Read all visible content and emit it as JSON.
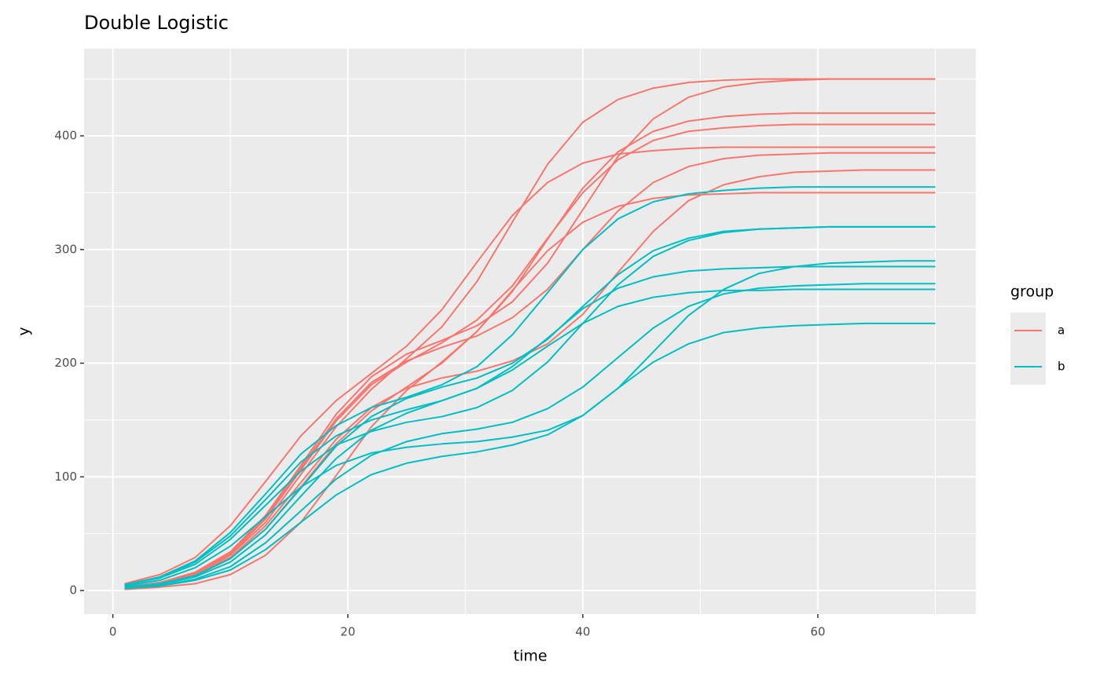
{
  "chart_data": {
    "type": "line",
    "title": "Double Logistic",
    "x_label": "time",
    "y_label": "y",
    "legend_title": "group",
    "grid": true,
    "xlim": [
      -2.45,
      73.45
    ],
    "ylim": [
      -20.7,
      476.7
    ],
    "xticks": [
      0,
      20,
      40,
      60
    ],
    "yticks": [
      0,
      100,
      200,
      300,
      400
    ],
    "x": [
      1,
      4,
      7,
      10,
      13,
      16,
      19,
      22,
      25,
      28,
      31,
      34,
      37,
      40,
      43,
      46,
      49,
      52,
      55,
      58,
      61,
      64,
      67,
      70
    ],
    "series": [
      {
        "name": "a",
        "color": "#F8766D",
        "lines": [
          [
            3,
            6,
            14,
            31,
            60,
            102,
            144,
            177,
            204,
            232,
            272,
            324,
            375,
            412,
            432,
            442,
            447,
            449,
            450,
            450,
            450,
            450,
            450,
            450
          ],
          [
            3,
            7,
            15,
            32,
            63,
            106,
            149,
            181,
            201,
            218,
            238,
            268,
            310,
            350,
            379,
            396,
            404,
            407,
            409,
            410,
            410,
            410,
            410,
            410
          ],
          [
            6,
            14,
            29,
            57,
            96,
            136,
            167,
            191,
            215,
            247,
            289,
            330,
            359,
            376,
            384,
            387,
            389,
            390,
            390,
            390,
            390,
            390,
            390,
            390
          ],
          [
            3,
            7,
            15,
            33,
            64,
            108,
            151,
            183,
            202,
            214,
            224,
            240,
            265,
            300,
            334,
            359,
            373,
            380,
            383,
            384,
            385,
            385,
            385,
            385
          ],
          [
            3,
            6,
            13,
            28,
            54,
            91,
            129,
            158,
            179,
            200,
            228,
            264,
            299,
            324,
            338,
            345,
            348,
            349,
            350,
            350,
            350,
            350,
            350,
            350
          ],
          [
            1,
            3,
            6,
            14,
            31,
            60,
            101,
            144,
            176,
            201,
            228,
            263,
            309,
            354,
            386,
            404,
            413,
            417,
            419,
            420,
            420,
            420,
            420,
            420
          ],
          [
            3,
            6,
            14,
            29,
            57,
            95,
            133,
            161,
            178,
            187,
            193,
            202,
            217,
            243,
            280,
            316,
            343,
            357,
            364,
            368,
            369,
            370,
            370,
            370
          ],
          [
            3,
            7,
            16,
            34,
            66,
            110,
            155,
            188,
            208,
            220,
            233,
            254,
            288,
            335,
            382,
            415,
            434,
            443,
            447,
            449,
            450,
            450,
            450,
            450
          ]
        ]
      },
      {
        "name": "b",
        "color": "#00BFC4",
        "lines": [
          [
            5,
            11,
            23,
            45,
            75,
            105,
            128,
            140,
            148,
            153,
            161,
            176,
            201,
            235,
            269,
            294,
            308,
            315,
            318,
            319,
            320,
            320,
            320,
            320
          ],
          [
            5,
            12,
            26,
            51,
            85,
            120,
            145,
            161,
            170,
            181,
            197,
            225,
            262,
            300,
            327,
            342,
            349,
            352,
            354,
            355,
            355,
            355,
            355,
            355
          ],
          [
            2,
            4,
            9,
            18,
            36,
            60,
            84,
            102,
            112,
            118,
            122,
            128,
            137,
            154,
            178,
            201,
            217,
            227,
            231,
            233,
            234,
            235,
            235,
            235
          ],
          [
            5,
            11,
            25,
            48,
            80,
            113,
            136,
            150,
            159,
            167,
            178,
            197,
            222,
            248,
            266,
            276,
            281,
            283,
            284,
            285,
            285,
            285,
            285,
            285
          ],
          [
            2,
            4,
            10,
            21,
            42,
            70,
            98,
            119,
            131,
            138,
            142,
            148,
            160,
            179,
            205,
            231,
            250,
            261,
            266,
            268,
            269,
            270,
            270,
            270
          ],
          [
            3,
            6,
            13,
            28,
            54,
            90,
            127,
            153,
            169,
            179,
            187,
            200,
            221,
            250,
            278,
            299,
            310,
            316,
            318,
            319,
            320,
            320,
            320,
            320
          ],
          [
            4,
            9,
            20,
            39,
            65,
            91,
            110,
            121,
            126,
            129,
            131,
            135,
            141,
            154,
            178,
            210,
            242,
            265,
            279,
            285,
            288,
            289,
            290,
            290
          ],
          [
            2,
            5,
            12,
            25,
            49,
            83,
            116,
            141,
            156,
            167,
            178,
            194,
            215,
            235,
            250,
            258,
            262,
            264,
            264,
            265,
            265,
            265,
            265,
            265
          ]
        ]
      }
    ]
  }
}
